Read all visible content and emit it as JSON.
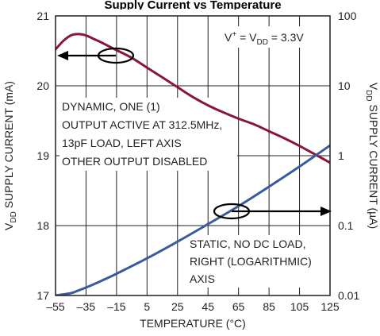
{
  "chart_data": {
    "type": "line",
    "title": "",
    "xlabel": "TEMPERATURE (°C)",
    "ylabel_left": {
      "main": "V",
      "sub": "DD",
      "rest": " SUPPLY CURRENT (mA)"
    },
    "ylabel_right": {
      "main": "V",
      "sub": "DD",
      "rest": " SUPPLY CURRENT (µA)"
    },
    "x_ticks": [
      -55,
      -35,
      -15,
      5,
      25,
      45,
      65,
      85,
      105,
      125
    ],
    "xlim": [
      -55,
      125
    ],
    "ylim_left": [
      17,
      21
    ],
    "y_ticks_left": [
      17,
      18,
      19,
      20,
      21
    ],
    "ylim_right": [
      0.01,
      100
    ],
    "right_scale": "log",
    "y_ticks_right": [
      0.01,
      0.1,
      1,
      10,
      100
    ],
    "y_tick_labels_right": [
      "0.01",
      "0.1",
      "1",
      "10",
      "100"
    ],
    "grid": true,
    "series": [
      {
        "key": "dynamic",
        "axis": "left",
        "color": "#8b1538",
        "x": [
          -55,
          -50,
          -45,
          -40,
          -35,
          -30,
          -25,
          -15,
          -5,
          5,
          15,
          25,
          35,
          45,
          55,
          65,
          75,
          85,
          95,
          105,
          115,
          120,
          125
        ],
        "y": [
          20.52,
          20.64,
          20.72,
          20.74,
          20.72,
          20.67,
          20.62,
          20.51,
          20.4,
          20.26,
          20.12,
          19.98,
          19.84,
          19.72,
          19.62,
          19.53,
          19.45,
          19.35,
          19.25,
          19.14,
          19.02,
          18.96,
          18.9
        ]
      },
      {
        "key": "static",
        "axis": "right",
        "color": "#3a5a9e",
        "x": [
          -55,
          -45,
          -40,
          -35,
          -25,
          -15,
          5,
          25,
          45,
          65,
          85,
          105,
          125
        ],
        "y": [
          0.01,
          0.0108,
          0.0118,
          0.013,
          0.0162,
          0.0205,
          0.034,
          0.059,
          0.105,
          0.19,
          0.36,
          0.7,
          1.4
        ]
      }
    ],
    "annotations": {
      "condition": {
        "pre": "V",
        "sup": "+",
        "mid": " = V",
        "sub": "DD",
        "post": " = 3.3V"
      },
      "dynamic_label": [
        "DYNAMIC, ONE (1)",
        "OUTPUT ACTIVE AT 312.5MHz,",
        "13pF LOAD, LEFT AXIS",
        "OTHER OUTPUT DISABLED"
      ],
      "static_label": [
        "STATIC, NO DC LOAD,",
        "RIGHT (LOGARITHMIC)",
        "AXIS"
      ]
    },
    "partial_title": "Supply Current vs Temperature",
    "style": {
      "grid_color": "#231f20",
      "axis_color": "#231f20",
      "arrow_color": "#000000",
      "background": "#ffffff"
    }
  }
}
